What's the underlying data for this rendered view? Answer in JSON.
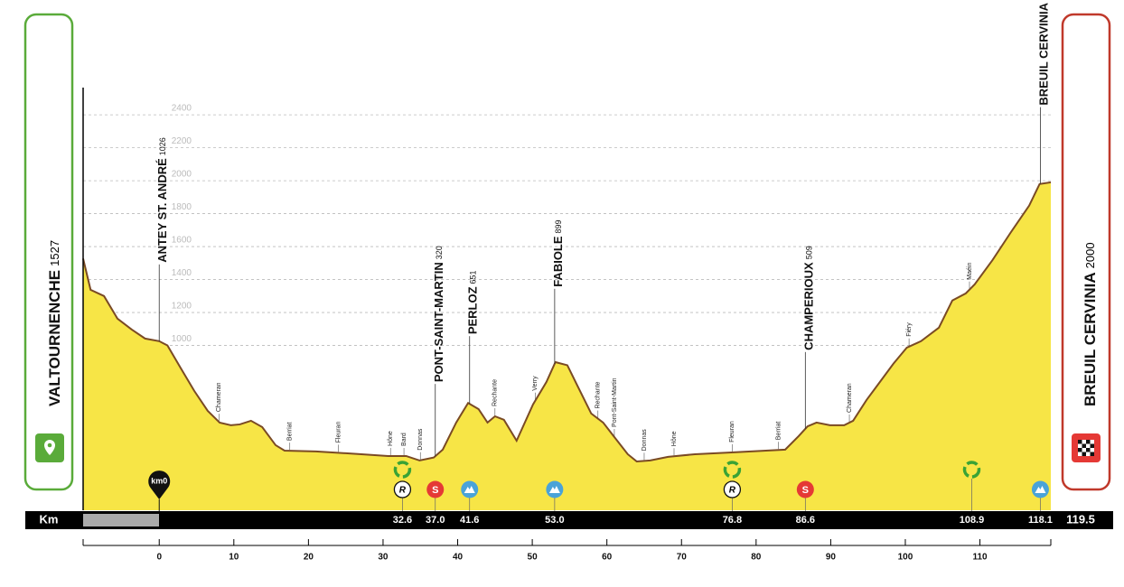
{
  "chart_data": {
    "type": "area",
    "color": "#f7e546",
    "line_color": "#7a4a24",
    "x": [
      -10.2,
      -9.2,
      -7.4,
      -5.6,
      -3.7,
      -1.9,
      0,
      1.1,
      2.9,
      4.7,
      6.5,
      8.1,
      9.6,
      10.8,
      12.3,
      13.8,
      15.6,
      16.8,
      21.0,
      27.1,
      30.7,
      33.1,
      34.9,
      36.8,
      38.0,
      39.8,
      41.4,
      42.8,
      44.0,
      45.0,
      46.2,
      47.9,
      50.1,
      51.9,
      53.1,
      54.7,
      56.1,
      57.9,
      59.5,
      60.9,
      62.8,
      64.0,
      65.8,
      68.2,
      71.8,
      76.7,
      83.9,
      85.7,
      86.9,
      88.1,
      89.9,
      91.8,
      93.0,
      94.8,
      96.6,
      98.4,
      100.2,
      102.1,
      104.5,
      106.3,
      108.1,
      109.3,
      111.7,
      114.1,
      116.6,
      118.0,
      119.5
    ],
    "values": [
      1527,
      1338,
      1300,
      1163,
      1097,
      1042,
      1026,
      1000,
      861,
      724,
      603,
      532,
      516,
      521,
      543,
      505,
      395,
      362,
      357,
      340,
      329,
      329,
      302,
      320,
      368,
      532,
      651,
      614,
      532,
      570,
      549,
      422,
      642,
      779,
      899,
      880,
      751,
      587,
      532,
      450,
      340,
      296,
      302,
      324,
      340,
      351,
      368,
      450,
      509,
      532,
      516,
      516,
      543,
      669,
      779,
      889,
      987,
      1026,
      1108,
      1273,
      1316,
      1371,
      1519,
      1684,
      1849,
      1980,
      1990
    ],
    "xlim": [
      -10.2,
      119.5
    ],
    "ylim": [
      0,
      2565
    ],
    "xticks": [
      0,
      10,
      20,
      30,
      40,
      50,
      60,
      70,
      80,
      90,
      100,
      110
    ],
    "yticks": [
      1000,
      1200,
      1400,
      1600,
      1800,
      2000,
      2200,
      2400
    ],
    "grid": true,
    "x_axis_label": "Km",
    "start": {
      "name": "VALTOURNENCHE",
      "elevation": 1527
    },
    "finish": {
      "name": "BREUIL CERVINIA",
      "elevation": 2000
    },
    "km0": {
      "km": 0,
      "label": "km0"
    },
    "major_places": [
      {
        "name": "ANTEY ST. ANDRÉ",
        "elevation": 1026,
        "km": 0
      },
      {
        "name": "PONT-SAINT-MARTIN",
        "elevation": 320,
        "km": 37.0
      },
      {
        "name": "PERLOZ",
        "elevation": 651,
        "km": 41.6
      },
      {
        "name": "FABIOLE",
        "elevation": 899,
        "km": 53.0
      },
      {
        "name": "CHAMPERIOUX",
        "elevation": 509,
        "km": 86.6
      },
      {
        "name": "BREUIL CERVINIA",
        "elevation": 1980,
        "km": 118.1
      }
    ],
    "minor_places": {
      "names": [
        "Chameran",
        "Berriat",
        "Fleuran",
        "Hône",
        "Bard",
        "Donnas",
        "Rechante",
        "Verry",
        "Rechante",
        "Pont-Saint-Martin",
        "Donnas",
        "Hône",
        "Fleuran",
        "Berriat",
        "Chameran",
        "Fiéry",
        "Maéin"
      ],
      "km": [
        8.0,
        17.5,
        24.0,
        31.0,
        32.8,
        35.0,
        45.0,
        50.4,
        58.8,
        61.0,
        65.0,
        69.0,
        76.8,
        83.0,
        92.5,
        100.5,
        108.6
      ]
    },
    "feed_zones": {
      "km": [
        32.6,
        76.8
      ],
      "km_labels": [
        "32.6",
        "76.8"
      ],
      "symbol": "R"
    },
    "waste_zones": {
      "km": [
        108.9
      ],
      "km_labels": [
        "108.9"
      ]
    },
    "sprints": {
      "km": [
        37.0,
        86.6
      ],
      "km_labels": [
        "37.0",
        "86.6"
      ],
      "symbol": "S"
    },
    "climbs": {
      "km": [
        41.6,
        53.0,
        118.1
      ],
      "km_labels": [
        "41.6",
        "53.0",
        "118.1"
      ]
    },
    "total_label": "119.5"
  }
}
